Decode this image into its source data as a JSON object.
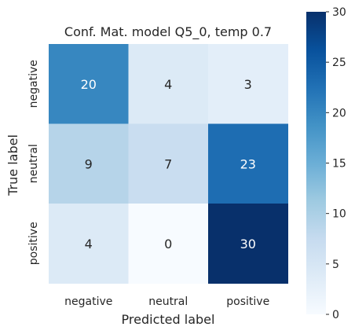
{
  "chart_data": {
    "type": "heatmap",
    "title": "Conf. Mat. model Q5_0, temp 0.7",
    "xlabel": "Predicted label",
    "ylabel": "True label",
    "x_categories": [
      "negative",
      "neutral",
      "positive"
    ],
    "y_categories": [
      "negative",
      "neutral",
      "positive"
    ],
    "values": [
      [
        20,
        4,
        3
      ],
      [
        9,
        7,
        23
      ],
      [
        4,
        0,
        30
      ]
    ],
    "colorbar": {
      "min": 0,
      "max": 30,
      "ticks": [
        0,
        5,
        10,
        15,
        20,
        25,
        30
      ],
      "colormap": "Blues"
    },
    "grid": false
  }
}
